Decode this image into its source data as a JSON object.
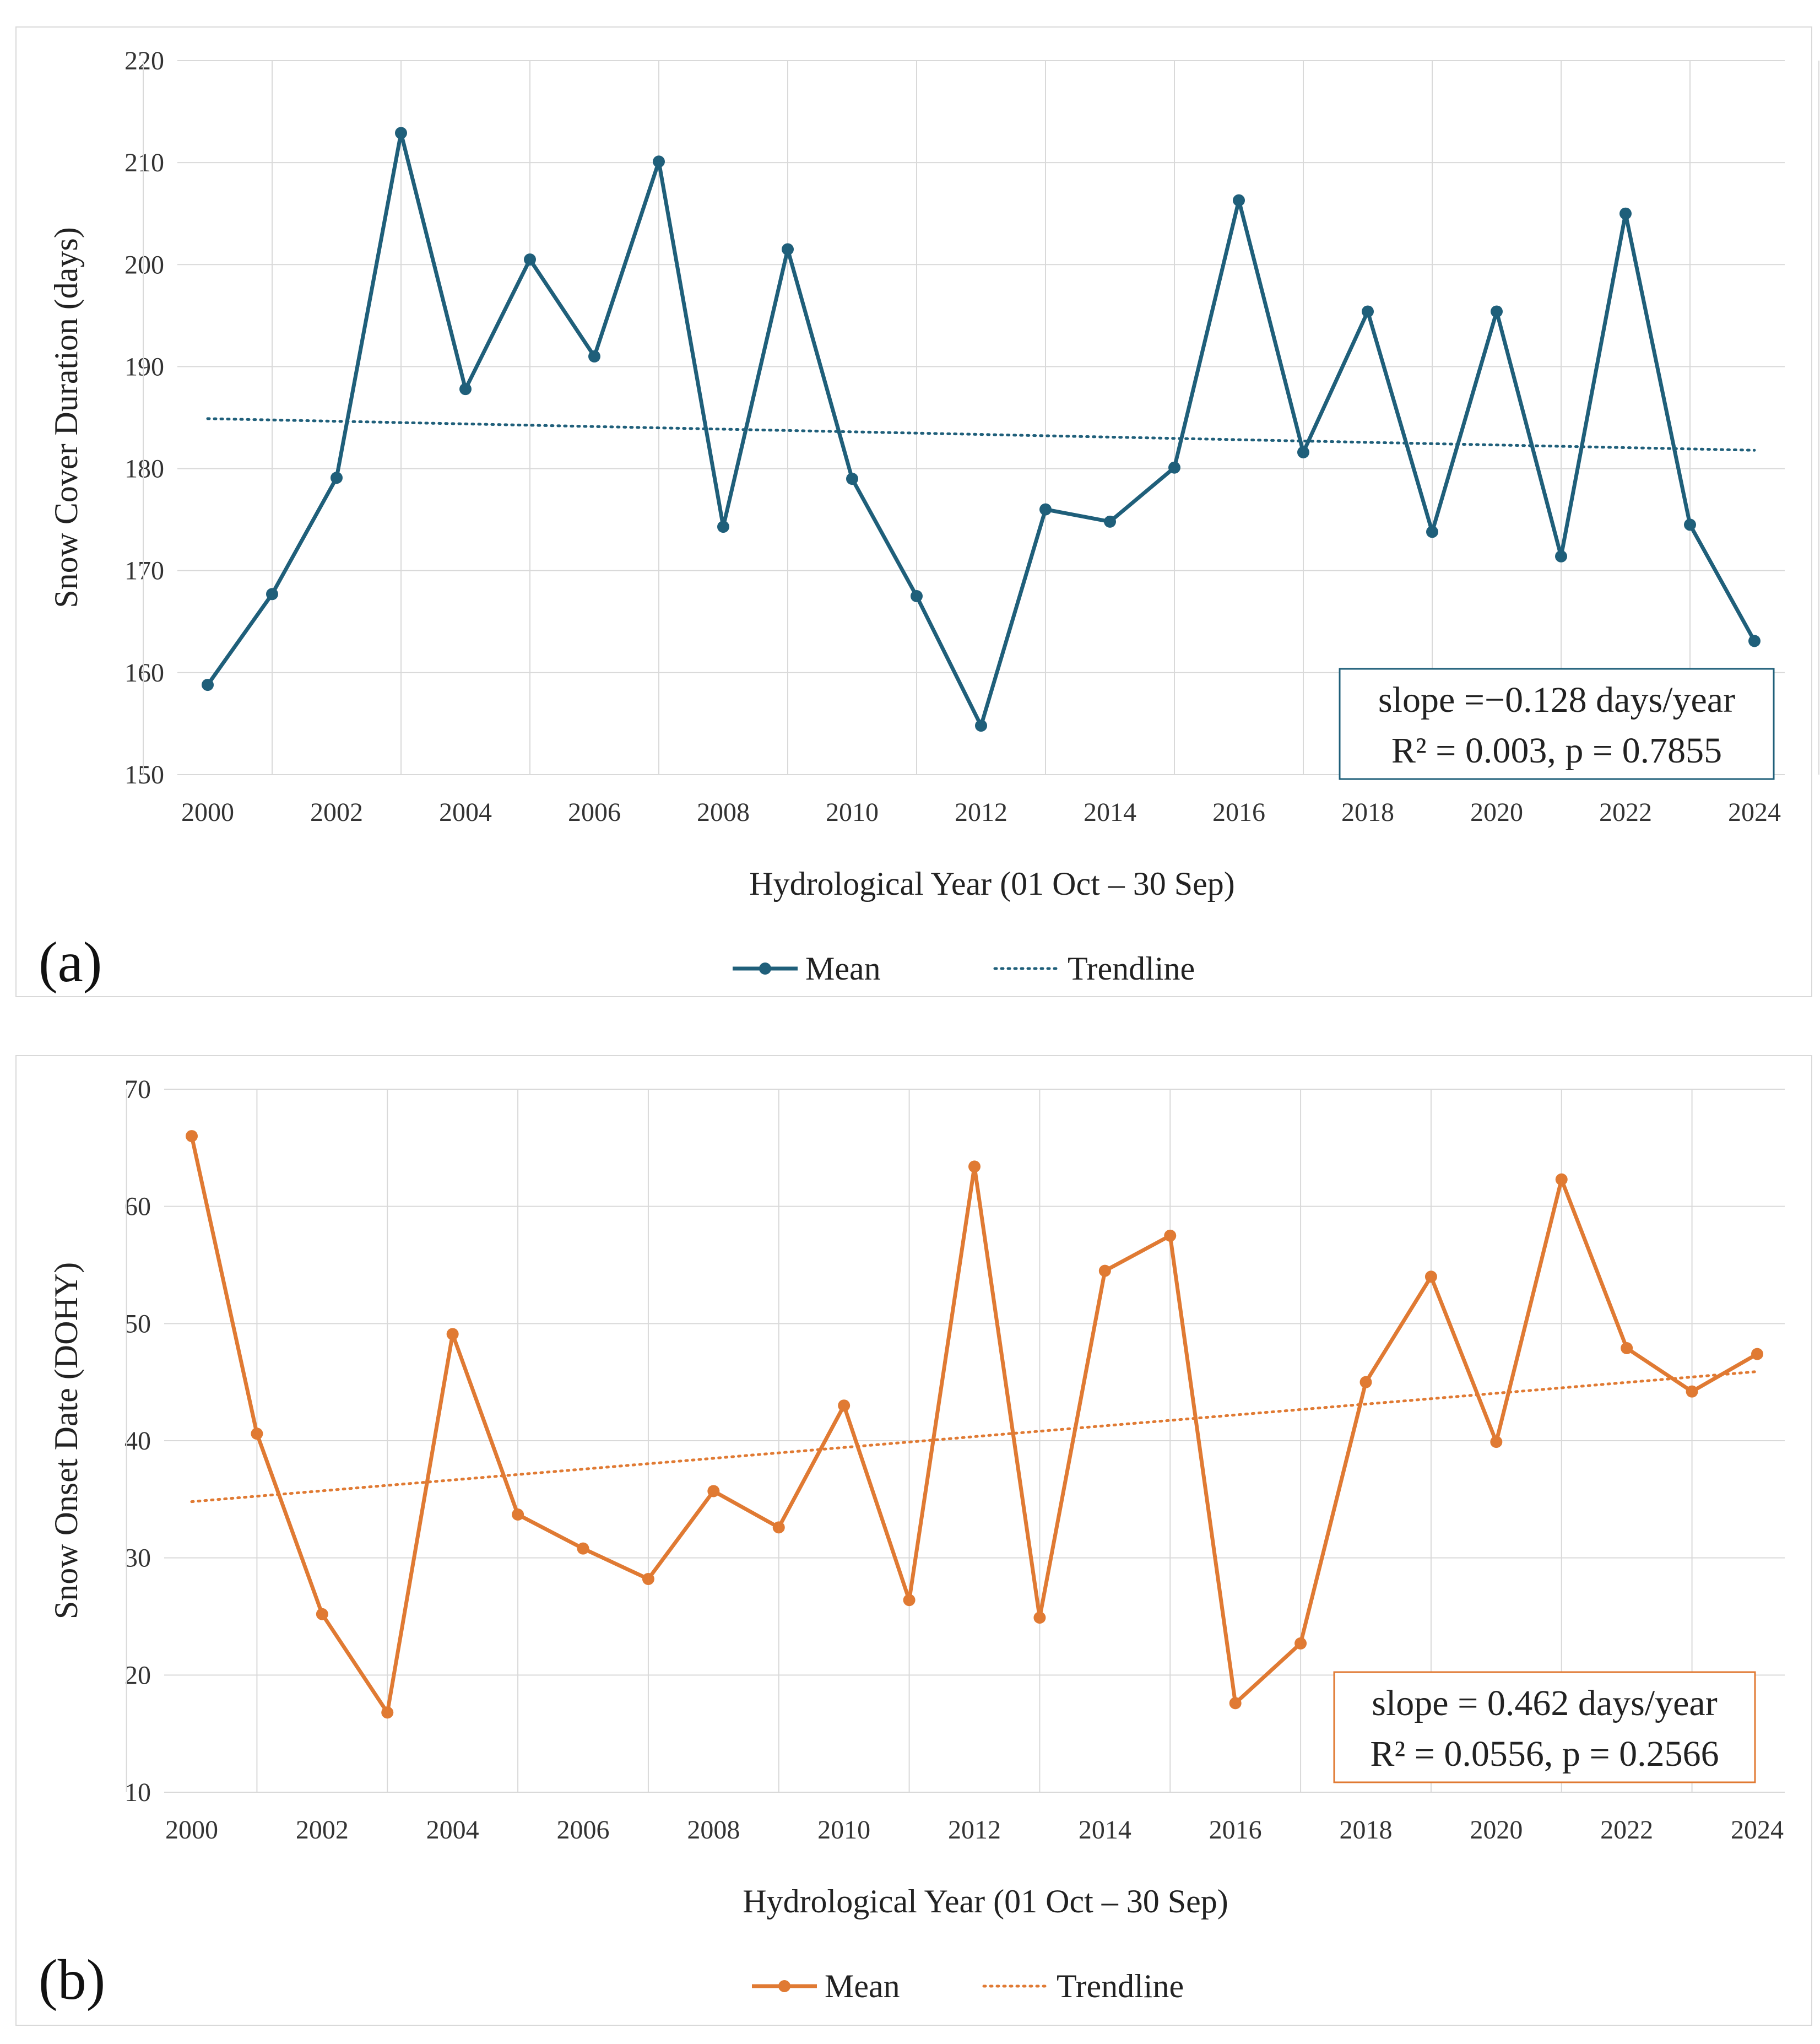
{
  "panels": [
    {
      "panel_label": "(a)",
      "color": "#1f5f7a",
      "chart_data": {
        "type": "line",
        "ylabel": "Snow Cover Duration (days)",
        "xlabel": "Hydrological Year (01 Oct – 30 Sep)",
        "ylim": [
          150,
          220
        ],
        "yticks": [
          150,
          160,
          170,
          180,
          190,
          200,
          210,
          220
        ],
        "xlim": [
          2000,
          2024
        ],
        "xticks": [
          2000,
          2002,
          2004,
          2006,
          2008,
          2010,
          2012,
          2014,
          2016,
          2018,
          2020,
          2022,
          2024
        ],
        "grid": true,
        "series": [
          {
            "name": "Mean",
            "x": [
              2000,
              2001,
              2002,
              2003,
              2004,
              2005,
              2006,
              2007,
              2008,
              2009,
              2010,
              2011,
              2012,
              2013,
              2014,
              2015,
              2016,
              2017,
              2018,
              2019,
              2020,
              2021,
              2022,
              2023,
              2024
            ],
            "values": [
              158.8,
              167.7,
              179.1,
              212.9,
              187.8,
              200.5,
              191.0,
              210.1,
              174.3,
              201.5,
              179.0,
              167.5,
              154.8,
              176.0,
              174.8,
              180.1,
              206.3,
              181.6,
              195.4,
              173.8,
              195.4,
              171.4,
              205.0,
              174.5,
              163.1
            ]
          },
          {
            "name": "Trendline",
            "x": [
              2000,
              2024
            ],
            "values": [
              184.9,
              181.8
            ]
          }
        ],
        "annotations": [
          "slope =−0.128 days/year",
          "R² = 0.003, p = 0.7855"
        ],
        "legend": [
          "Mean",
          "Trendline"
        ],
        "legend_position": "bottom"
      }
    },
    {
      "panel_label": "(b)",
      "color": "#e07a33",
      "chart_data": {
        "type": "line",
        "ylabel": "Snow Onset Date (DOHY)",
        "xlabel": "Hydrological Year (01 Oct – 30 Sep)",
        "ylim": [
          10,
          70
        ],
        "yticks": [
          10,
          20,
          30,
          40,
          50,
          60,
          70
        ],
        "xlim": [
          2000,
          2024
        ],
        "xticks": [
          2000,
          2002,
          2004,
          2006,
          2008,
          2010,
          2012,
          2014,
          2016,
          2018,
          2020,
          2022,
          2024
        ],
        "grid": true,
        "series": [
          {
            "name": "Mean",
            "x": [
              2000,
              2001,
              2002,
              2003,
              2004,
              2005,
              2006,
              2007,
              2008,
              2009,
              2010,
              2011,
              2012,
              2013,
              2014,
              2015,
              2016,
              2017,
              2018,
              2019,
              2020,
              2021,
              2022,
              2023,
              2024
            ],
            "values": [
              66.0,
              40.6,
              25.2,
              16.8,
              49.1,
              33.7,
              30.8,
              28.2,
              35.7,
              32.6,
              43.0,
              26.4,
              63.4,
              24.9,
              54.5,
              57.5,
              17.6,
              22.7,
              45.0,
              54.0,
              39.9,
              62.3,
              47.9,
              44.2,
              47.4
            ]
          },
          {
            "name": "Trendline",
            "x": [
              2000,
              2024
            ],
            "values": [
              34.8,
              45.9
            ]
          }
        ],
        "annotations": [
          "slope = 0.462 days/year",
          "R² = 0.0556, p = 0.2566"
        ],
        "legend": [
          "Mean",
          "Trendline"
        ],
        "legend_position": "bottom"
      }
    }
  ]
}
